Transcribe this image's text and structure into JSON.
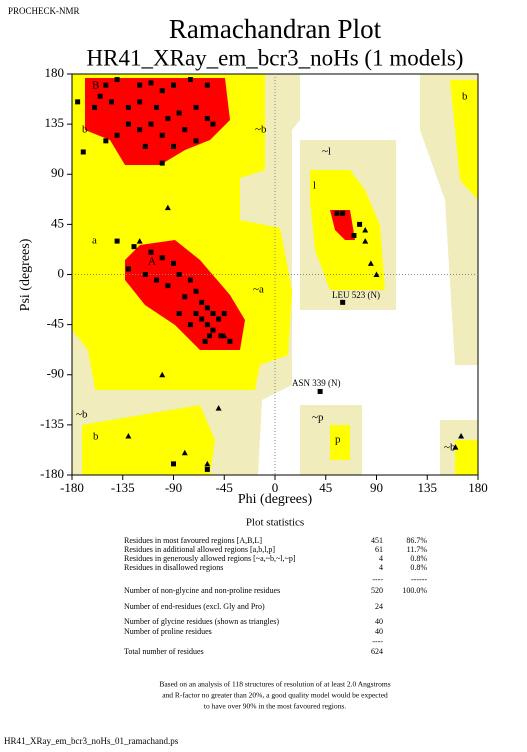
{
  "header": "PROCHECK-NMR",
  "footer": "HR41_XRay_em_bcr3_noHs_01_ramachand.ps",
  "chart_data": {
    "type": "scatter",
    "title": "Ramachandran Plot",
    "subtitle": "HR41_XRay_em_bcr3_noHs (1 models)",
    "xlabel": "Phi (degrees)",
    "ylabel": "Psi (degrees)",
    "xlim": [
      -180,
      180
    ],
    "ylim": [
      -180,
      180
    ],
    "xticks": [
      -180,
      -135,
      -90,
      -45,
      0,
      45,
      90,
      135,
      180
    ],
    "yticks": [
      -180,
      -135,
      -90,
      -45,
      0,
      45,
      90,
      135,
      180
    ],
    "region_labels": [
      "B",
      "b",
      "~b",
      "~l",
      "l",
      "a",
      "A",
      "~a",
      "~b",
      "b",
      "~p",
      "p",
      "~b",
      "b"
    ],
    "annotations": [
      "LEU 523 (N)",
      "ASN 339 (N)"
    ],
    "series": [
      {
        "marker": "square",
        "color": "#000000",
        "x": [
          -150,
          -140,
          -120,
          -110,
          -100,
          -90,
          -75,
          -60,
          -155,
          -145,
          -130,
          -120,
          -105,
          -95,
          -85,
          -70,
          -60,
          -130,
          -120,
          -110,
          -100,
          -80,
          -150,
          -140,
          -115,
          -90,
          -70,
          -55,
          -170,
          -100,
          -160,
          -175,
          -140,
          -125,
          -110,
          -100,
          -90,
          -85,
          -75,
          -70,
          -65,
          -60,
          -55,
          -65,
          -60,
          -55,
          -50,
          -70,
          -80,
          -95,
          -75,
          -58,
          -48,
          -62,
          -85,
          -105,
          -130,
          -115,
          -40,
          -45,
          55,
          60,
          70,
          75,
          40,
          60,
          -60,
          -90
        ],
        "y": [
          170,
          175,
          170,
          172,
          165,
          170,
          175,
          170,
          160,
          155,
          150,
          155,
          150,
          140,
          145,
          150,
          140,
          135,
          130,
          135,
          125,
          130,
          120,
          125,
          115,
          115,
          120,
          135,
          110,
          100,
          150,
          155,
          30,
          25,
          20,
          15,
          10,
          0,
          -5,
          -15,
          -25,
          -30,
          -35,
          -40,
          -45,
          -50,
          -40,
          -35,
          -20,
          -10,
          -45,
          -55,
          -55,
          -60,
          -35,
          -5,
          5,
          0,
          -60,
          -35,
          55,
          55,
          35,
          45,
          -105,
          -25,
          -175,
          -170
        ]
      },
      {
        "marker": "triangle",
        "color": "#000000",
        "x": [
          -130,
          -100,
          -80,
          -60,
          -50,
          80,
          85,
          80,
          90,
          -95,
          -120,
          160,
          165,
          -45
        ],
        "y": [
          -145,
          -90,
          -160,
          -170,
          -120,
          30,
          10,
          40,
          0,
          60,
          30,
          -155,
          -145,
          -55
        ]
      }
    ]
  },
  "stats": {
    "heading": "Plot statistics",
    "rows": [
      [
        "Residues in most favoured regions  [A,B,L]",
        "451",
        "86.7%"
      ],
      [
        "Residues in additional allowed regions  [a,b,l,p]",
        "61",
        "11.7%"
      ],
      [
        "Residues in generously allowed regions  [~a,~b,~l,~p]",
        "4",
        "0.8%"
      ],
      [
        "Residues in disallowed regions",
        "4",
        "0.8%"
      ],
      [
        "",
        "----",
        "------"
      ],
      [
        "Number of non-glycine and non-proline residues",
        "520",
        "100.0%"
      ],
      [
        "Number of end-residues (excl. Gly and Pro)",
        "24",
        ""
      ],
      [
        "Number of glycine residues (shown as triangles)",
        "40",
        ""
      ],
      [
        "Number of proline residues",
        "40",
        ""
      ],
      [
        "",
        "----",
        ""
      ],
      [
        "Total number of residues",
        "624",
        ""
      ]
    ],
    "note": [
      "Based on an analysis of 118 structures of resolution of at least 2.0 Angstroms",
      "and R-factor no greater than 20%, a good quality model would be expected",
      "to have over 90% in the most favoured regions."
    ]
  }
}
